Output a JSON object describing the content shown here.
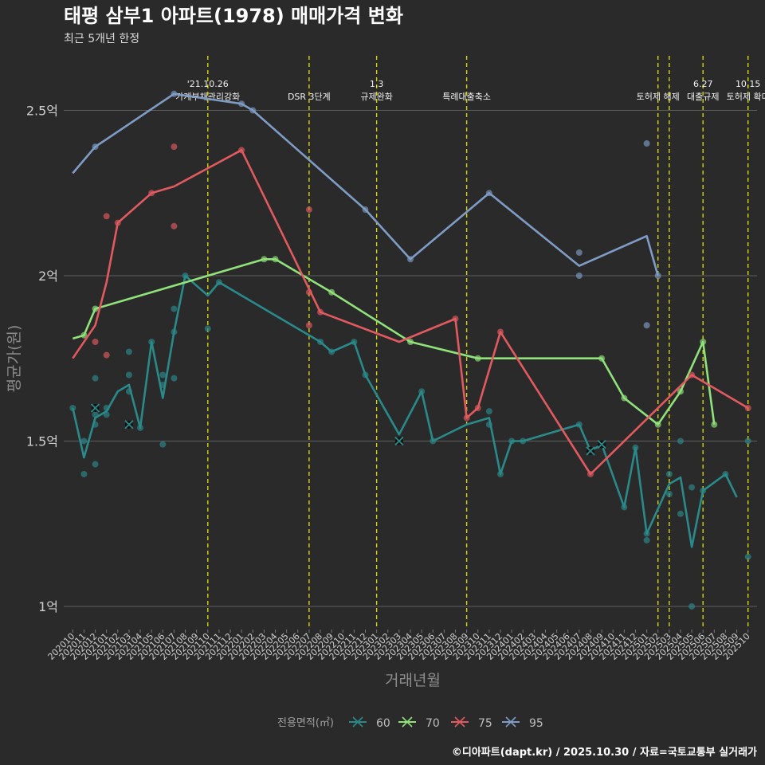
{
  "chart_data": {
    "type": "line",
    "title": "태평 삼부1 아파트(1978) 매매가격 변화",
    "subtitle": "최근 5개년 한정",
    "xlabel": "거래년월",
    "ylabel": "평균가(원)",
    "caption": "©디아파트(dapt.kr) / 2025.10.30 / 자료=국토교통부 실거래가",
    "legend_title": "전용면적(㎡)",
    "ylim": [
      0.93,
      2.67
    ],
    "yticks": [
      {
        "value": 1.0,
        "label": "1억"
      },
      {
        "value": 1.5,
        "label": "1.5억"
      },
      {
        "value": 2.0,
        "label": "2억"
      },
      {
        "value": 2.5,
        "label": "2.5억"
      }
    ],
    "xlim": [
      -0.8,
      60.8
    ],
    "categories": [
      "202010",
      "202011",
      "202012",
      "202101",
      "202102",
      "202103",
      "202104",
      "202105",
      "202106",
      "202107",
      "202108",
      "202109",
      "202110",
      "202111",
      "202112",
      "202201",
      "202202",
      "202203",
      "202204",
      "202205",
      "202206",
      "202207",
      "202208",
      "202209",
      "202210",
      "202211",
      "202212",
      "202301",
      "202302",
      "202303",
      "202304",
      "202305",
      "202306",
      "202307",
      "202308",
      "202309",
      "202310",
      "202311",
      "202312",
      "202401",
      "202402",
      "202403",
      "202404",
      "202405",
      "202406",
      "202407",
      "202408",
      "202409",
      "202410",
      "202411",
      "202412",
      "202501",
      "202502",
      "202503",
      "202504",
      "202505",
      "202506",
      "202507",
      "202508",
      "202509",
      "202510"
    ],
    "events": [
      {
        "x": 12,
        "lines": [
          "'21.10.26",
          "가계부채관리강화"
        ]
      },
      {
        "x": 21,
        "lines": [
          "DSR 3단계"
        ]
      },
      {
        "x": 27,
        "lines": [
          "1.3",
          "규제완화"
        ]
      },
      {
        "x": 35,
        "lines": [
          "특례대출축소"
        ]
      },
      {
        "x": 52,
        "lines": [
          "토허제 해제"
        ]
      },
      {
        "x": 53,
        "lines": []
      },
      {
        "x": 56,
        "lines": [
          "6.27",
          "대출규제"
        ]
      },
      {
        "x": 60,
        "lines": [
          "10.15",
          "토허제 확대"
        ]
      }
    ],
    "series": [
      {
        "name": "60",
        "color": "#2a8a8a",
        "line": [
          [
            0,
            1.6
          ],
          [
            1,
            1.45
          ],
          [
            2,
            1.57
          ],
          [
            3,
            1.59
          ],
          [
            4,
            1.65
          ],
          [
            5,
            1.67
          ],
          [
            6,
            1.54
          ],
          [
            7,
            1.8
          ],
          [
            8,
            1.63
          ],
          [
            9,
            1.83
          ],
          [
            10,
            2.0
          ],
          [
            12,
            1.94
          ],
          [
            13,
            1.98
          ],
          [
            22,
            1.8
          ],
          [
            23,
            1.77
          ],
          [
            25,
            1.8
          ],
          [
            26,
            1.7
          ],
          [
            29,
            1.52
          ],
          [
            31,
            1.65
          ],
          [
            32,
            1.5
          ],
          [
            35,
            1.55
          ],
          [
            37,
            1.57
          ],
          [
            38,
            1.4
          ],
          [
            39,
            1.5
          ],
          [
            40,
            1.5
          ],
          [
            45,
            1.55
          ],
          [
            46,
            1.47
          ],
          [
            47,
            1.49
          ],
          [
            49,
            1.3
          ],
          [
            50,
            1.48
          ],
          [
            51,
            1.22
          ],
          [
            53,
            1.37
          ],
          [
            54,
            1.39
          ],
          [
            55,
            1.18
          ],
          [
            56,
            1.35
          ],
          [
            58,
            1.4
          ],
          [
            59,
            1.33
          ]
        ],
        "points": [
          [
            0,
            1.6
          ],
          [
            1,
            1.4
          ],
          [
            1,
            1.5
          ],
          [
            2,
            1.69
          ],
          [
            2,
            1.6
          ],
          [
            2,
            1.58
          ],
          [
            2,
            1.55
          ],
          [
            2,
            1.43
          ],
          [
            3,
            1.6
          ],
          [
            3,
            1.58
          ],
          [
            5,
            1.77
          ],
          [
            5,
            1.7
          ],
          [
            5,
            1.65
          ],
          [
            6,
            1.54
          ],
          [
            7,
            1.8
          ],
          [
            8,
            1.7
          ],
          [
            8,
            1.67
          ],
          [
            8,
            1.49
          ],
          [
            9,
            1.9
          ],
          [
            9,
            1.83
          ],
          [
            9,
            1.69
          ],
          [
            10,
            2.0
          ],
          [
            12,
            1.84
          ],
          [
            13,
            1.98
          ],
          [
            22,
            1.8
          ],
          [
            23,
            1.77
          ],
          [
            25,
            1.8
          ],
          [
            26,
            1.7
          ],
          [
            31,
            1.65
          ],
          [
            32,
            1.5
          ],
          [
            37,
            1.59
          ],
          [
            37,
            1.55
          ],
          [
            38,
            1.4
          ],
          [
            39,
            1.5
          ],
          [
            40,
            1.5
          ],
          [
            45,
            1.55
          ],
          [
            46,
            1.47
          ],
          [
            49,
            1.3
          ],
          [
            50,
            1.48
          ],
          [
            51,
            1.2
          ],
          [
            51,
            1.22
          ],
          [
            53,
            1.4
          ],
          [
            53,
            1.34
          ],
          [
            54,
            1.5
          ],
          [
            54,
            1.28
          ],
          [
            55,
            1.36
          ],
          [
            55,
            1.0
          ],
          [
            56,
            1.35
          ],
          [
            58,
            1.4
          ],
          [
            60,
            1.5
          ],
          [
            60,
            1.15
          ]
        ],
        "cancelled": [
          [
            2,
            1.6
          ],
          [
            5,
            1.55
          ],
          [
            29,
            1.5
          ],
          [
            46,
            1.47
          ],
          [
            47,
            1.49
          ]
        ]
      },
      {
        "name": "70",
        "color": "#90e27a",
        "line": [
          [
            0,
            1.81
          ],
          [
            1,
            1.82
          ],
          [
            2,
            1.9
          ],
          [
            17,
            2.05
          ],
          [
            18,
            2.05
          ],
          [
            23,
            1.95
          ],
          [
            30,
            1.8
          ],
          [
            36,
            1.75
          ],
          [
            47,
            1.75
          ],
          [
            49,
            1.63
          ],
          [
            52,
            1.55
          ],
          [
            54,
            1.65
          ],
          [
            56,
            1.8
          ],
          [
            57,
            1.55
          ]
        ],
        "points": [
          [
            1,
            1.82
          ],
          [
            2,
            1.9
          ],
          [
            17,
            2.05
          ],
          [
            18,
            2.05
          ],
          [
            23,
            1.95
          ],
          [
            30,
            1.8
          ],
          [
            36,
            1.75
          ],
          [
            47,
            1.75
          ],
          [
            49,
            1.63
          ],
          [
            52,
            1.55
          ],
          [
            54,
            1.65
          ],
          [
            56,
            1.8
          ],
          [
            57,
            1.55
          ]
        ],
        "cancelled": []
      },
      {
        "name": "75",
        "color": "#e05a5f",
        "line": [
          [
            0,
            1.75
          ],
          [
            2,
            1.85
          ],
          [
            3,
            1.98
          ],
          [
            4,
            2.16
          ],
          [
            7,
            2.25
          ],
          [
            9,
            2.27
          ],
          [
            15,
            2.38
          ],
          [
            22,
            1.89
          ],
          [
            29,
            1.8
          ],
          [
            34,
            1.87
          ],
          [
            35,
            1.57
          ],
          [
            36,
            1.6
          ],
          [
            38,
            1.83
          ],
          [
            46,
            1.4
          ],
          [
            55,
            1.7
          ],
          [
            60,
            1.6
          ]
        ],
        "points": [
          [
            2,
            1.8
          ],
          [
            3,
            2.18
          ],
          [
            3,
            1.76
          ],
          [
            4,
            2.16
          ],
          [
            7,
            2.25
          ],
          [
            9,
            2.39
          ],
          [
            9,
            2.15
          ],
          [
            15,
            2.38
          ],
          [
            21,
            2.2
          ],
          [
            21,
            1.95
          ],
          [
            21,
            1.85
          ],
          [
            22,
            1.89
          ],
          [
            34,
            1.87
          ],
          [
            35,
            1.57
          ],
          [
            36,
            1.6
          ],
          [
            38,
            1.83
          ],
          [
            46,
            1.4
          ],
          [
            55,
            1.7
          ],
          [
            60,
            1.6
          ]
        ],
        "cancelled": []
      },
      {
        "name": "95",
        "color": "#7e9cc4",
        "line": [
          [
            0,
            2.31
          ],
          [
            2,
            2.39
          ],
          [
            9,
            2.55
          ],
          [
            15,
            2.52
          ],
          [
            16,
            2.5
          ],
          [
            26,
            2.2
          ],
          [
            30,
            2.05
          ],
          [
            37,
            2.25
          ],
          [
            45,
            2.03
          ],
          [
            51,
            2.12
          ],
          [
            52,
            2.0
          ]
        ],
        "points": [
          [
            2,
            2.39
          ],
          [
            9,
            2.55
          ],
          [
            15,
            2.52
          ],
          [
            16,
            2.5
          ],
          [
            26,
            2.2
          ],
          [
            30,
            2.05
          ],
          [
            37,
            2.25
          ],
          [
            45,
            2.07
          ],
          [
            45,
            2.0
          ],
          [
            51,
            2.4
          ],
          [
            51,
            1.85
          ],
          [
            52,
            2.0
          ]
        ],
        "cancelled": []
      }
    ]
  }
}
